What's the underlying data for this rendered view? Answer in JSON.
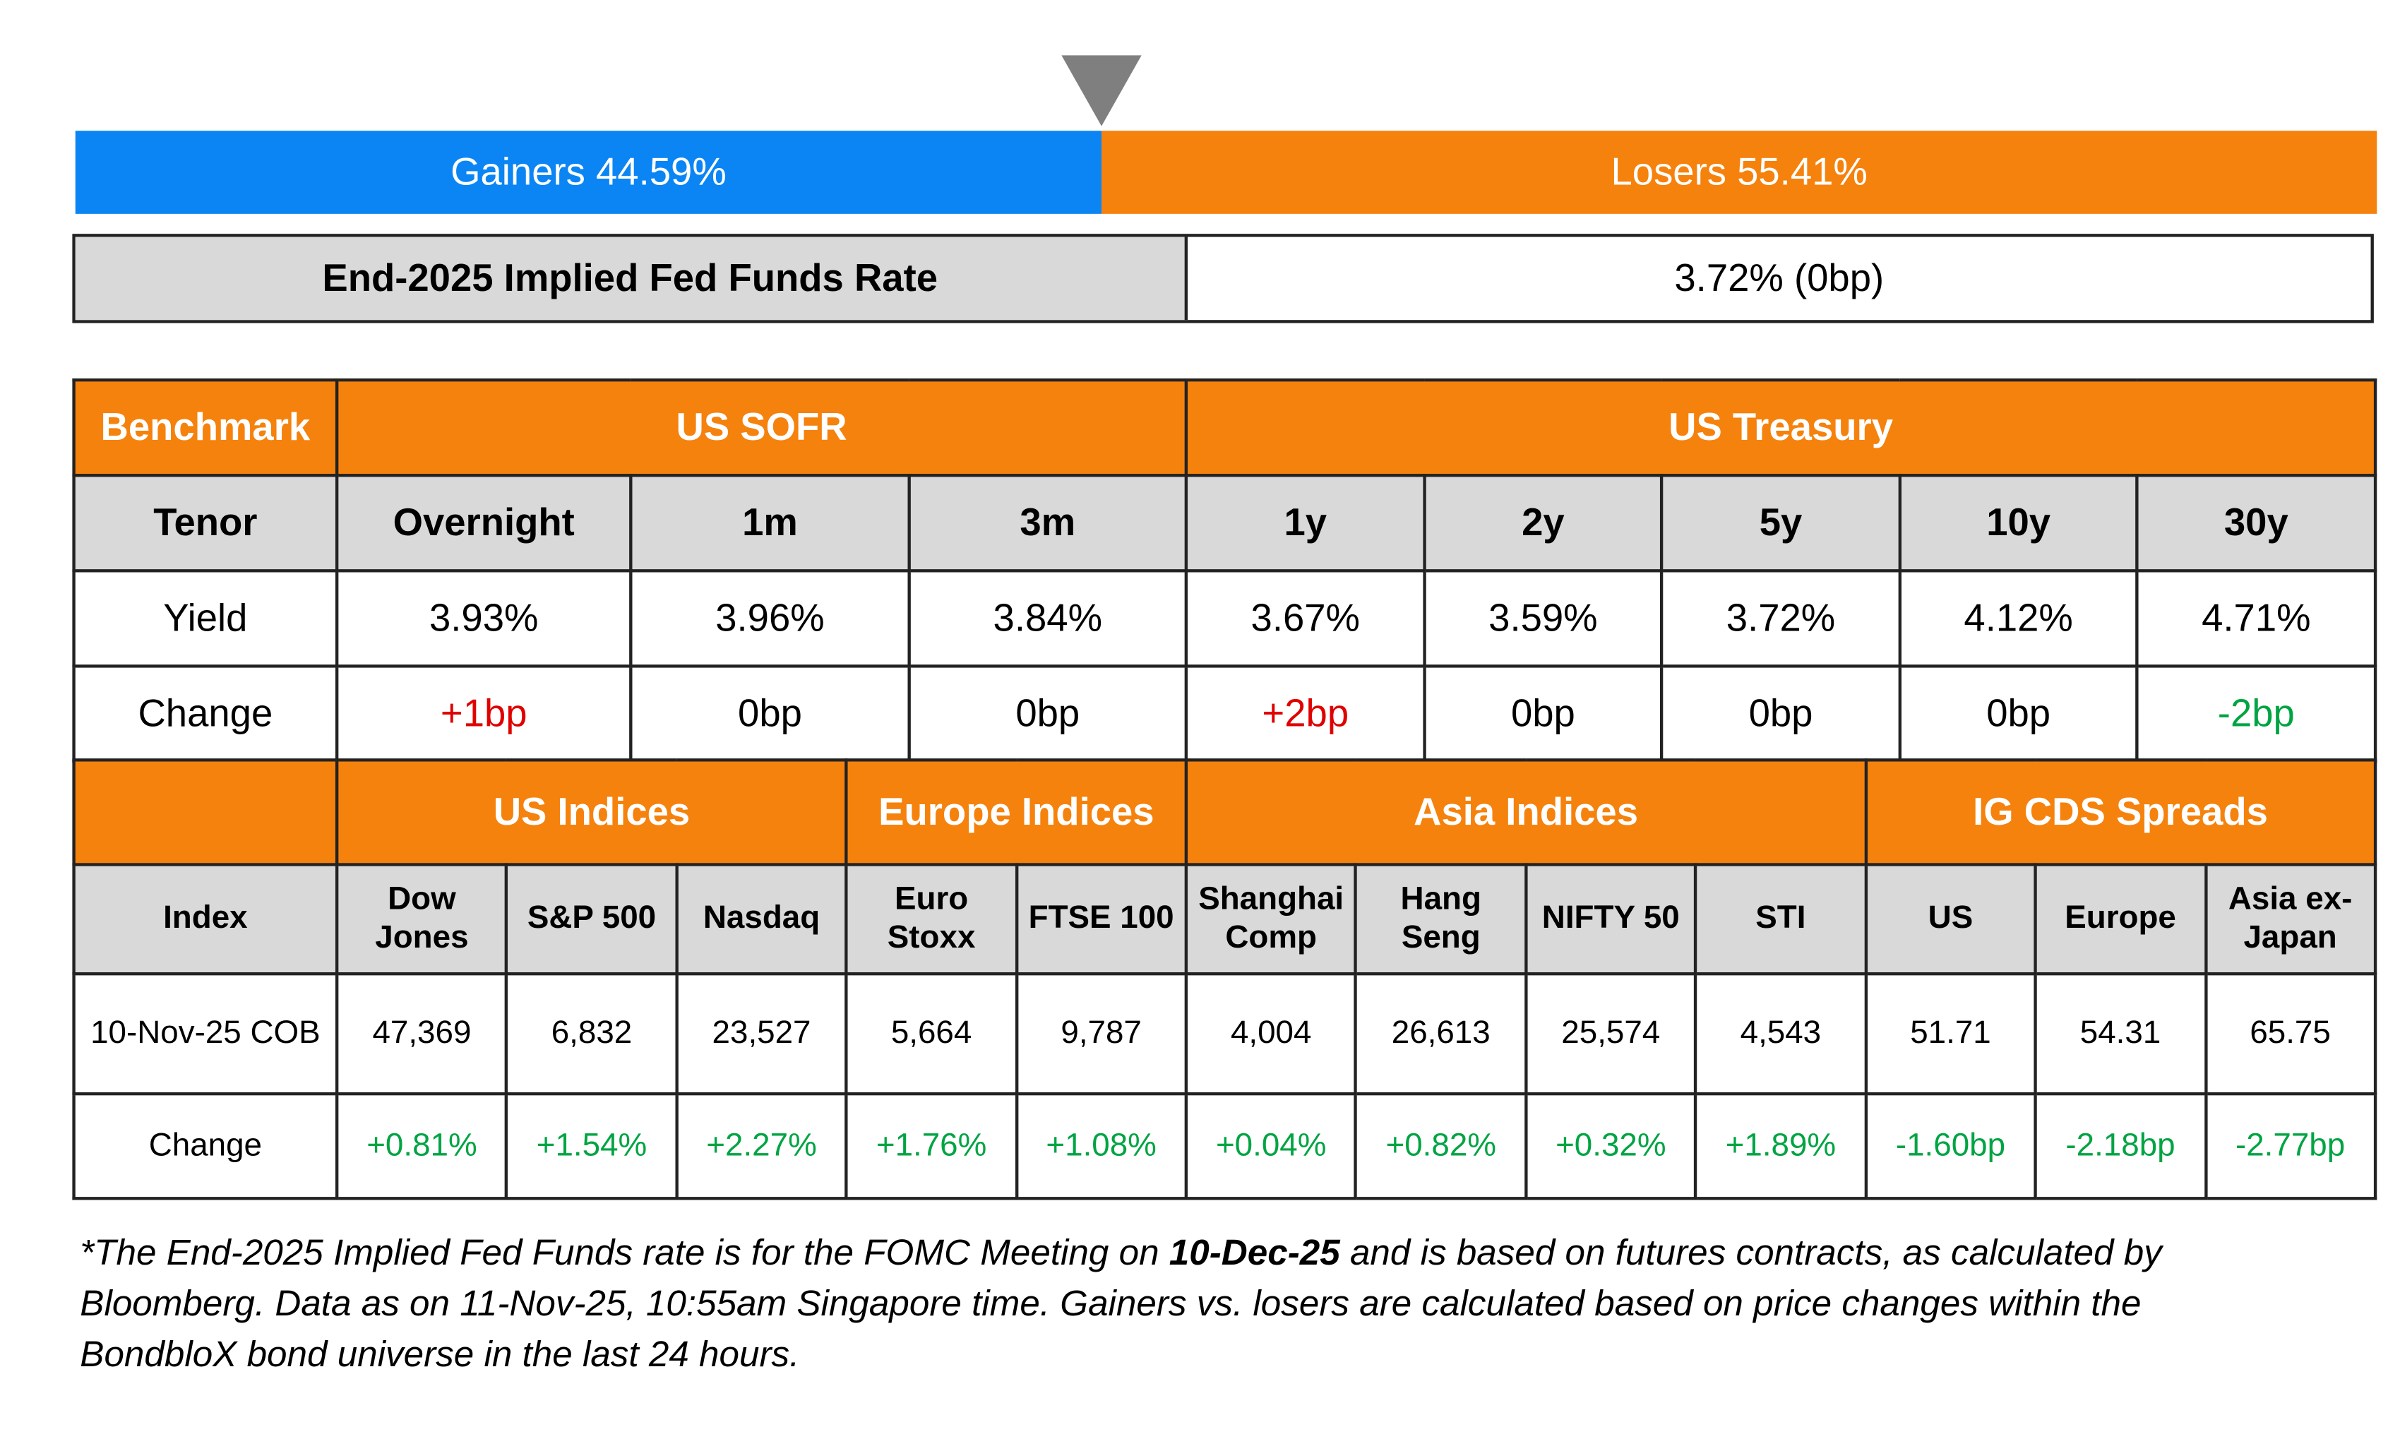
{
  "market_breadth": {
    "gainers": {
      "label": "Gainers 44.59%",
      "value": 44.59,
      "color": "#0b85f4"
    },
    "losers": {
      "label": "Losers 55.41%",
      "value": 55.41,
      "color": "#f5820d"
    }
  },
  "fed_funds": {
    "label": "End-2025 Implied Fed Funds Rate",
    "value": "3.72% (0bp)"
  },
  "rates_table": {
    "corner": "Benchmark",
    "row_labels": [
      "Tenor",
      "Yield",
      "Change"
    ],
    "groups": [
      {
        "name": "US SOFR",
        "tenors": [
          "Overnight",
          "1m",
          "3m"
        ],
        "yields": [
          "3.93%",
          "3.96%",
          "3.84%"
        ],
        "changes": [
          "+1bp",
          "0bp",
          "0bp"
        ],
        "change_colors": [
          "#e00000",
          "#000000",
          "#000000"
        ]
      },
      {
        "name": "US Treasury",
        "tenors": [
          "1y",
          "2y",
          "5y",
          "10y",
          "30y"
        ],
        "yields": [
          "3.67%",
          "3.59%",
          "3.72%",
          "4.12%",
          "4.71%"
        ],
        "changes": [
          "+2bp",
          "0bp",
          "0bp",
          "0bp",
          "-2bp"
        ],
        "change_colors": [
          "#e00000",
          "#000000",
          "#000000",
          "#000000",
          "#00a443"
        ]
      }
    ]
  },
  "indices_table": {
    "row_labels": [
      "Index",
      "10-Nov-25 COB",
      "Change"
    ],
    "groups": [
      {
        "name": "US Indices",
        "indices": [
          "Dow Jones",
          "S&P 500",
          "Nasdaq"
        ],
        "levels": [
          "47,369",
          "6,832",
          "23,527"
        ],
        "changes": [
          "+0.81%",
          "+1.54%",
          "+2.27%"
        ]
      },
      {
        "name": "Europe Indices",
        "indices": [
          "Euro Stoxx",
          "FTSE 100"
        ],
        "levels": [
          "5,664",
          "9,787"
        ],
        "changes": [
          "+1.76%",
          "+1.08%"
        ]
      },
      {
        "name": "Asia Indices",
        "indices": [
          "Shanghai Comp",
          "Hang Seng",
          "NIFTY 50",
          "STI"
        ],
        "levels": [
          "4,004",
          "26,613",
          "25,574",
          "4,543"
        ],
        "changes": [
          "+0.04%",
          "+0.82%",
          "+0.32%",
          "+1.89%"
        ]
      },
      {
        "name": "IG CDS Spreads",
        "indices": [
          "US",
          "Europe",
          "Asia ex-Japan"
        ],
        "levels": [
          "51.71",
          "54.31",
          "65.75"
        ],
        "changes": [
          "-1.60bp",
          "-2.18bp",
          "-2.77bp"
        ]
      }
    ],
    "change_color": "#00a443"
  },
  "footnote": [
    "*The End-2025 Implied Fed Funds rate is for the FOMC Meeting on ",
    "10-Dec-25",
    " and is based on futures contracts, as calculated by Bloomberg. Data as on 11-Nov-25, 10:55am Singapore time. Gainers vs. losers are calculated based on price changes within the BondbloX bond universe in the last 24 hours."
  ]
}
